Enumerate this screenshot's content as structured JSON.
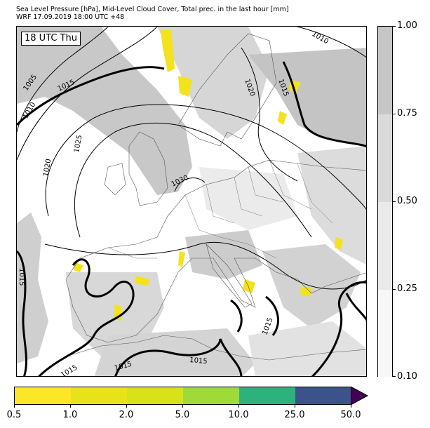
{
  "title": {
    "line1": "Sea Level Pressure [hPa], Mid-Level Cloud Cover, Total prec. in the last hour [mm]",
    "line2": "WRF 17.09.2019 18:00 UTC +48"
  },
  "map": {
    "time_label": "18 UTC Thu",
    "isobar_labels": [
      "1005",
      "1010",
      "1015",
      "1020",
      "1025",
      "1030",
      "1010",
      "1020",
      "1015",
      "1015",
      "1015",
      "1015",
      "1015",
      "1015"
    ]
  },
  "cloud_legend": {
    "ticks": [
      "0.10",
      "0.25",
      "0.50",
      "0.75",
      "1.00"
    ],
    "colors": [
      "#f7f7f7",
      "#eaeaea",
      "#dadada",
      "#c6c6c6"
    ]
  },
  "precip_legend": {
    "ticks": [
      "0.5",
      "1.0",
      "2.0",
      "5.0",
      "10.0",
      "25.0",
      "50.0"
    ],
    "colors": [
      "#fde725",
      "#e8e319",
      "#d8e219",
      "#a0da39",
      "#2db27d",
      "#3b528b",
      "#440154"
    ]
  }
}
